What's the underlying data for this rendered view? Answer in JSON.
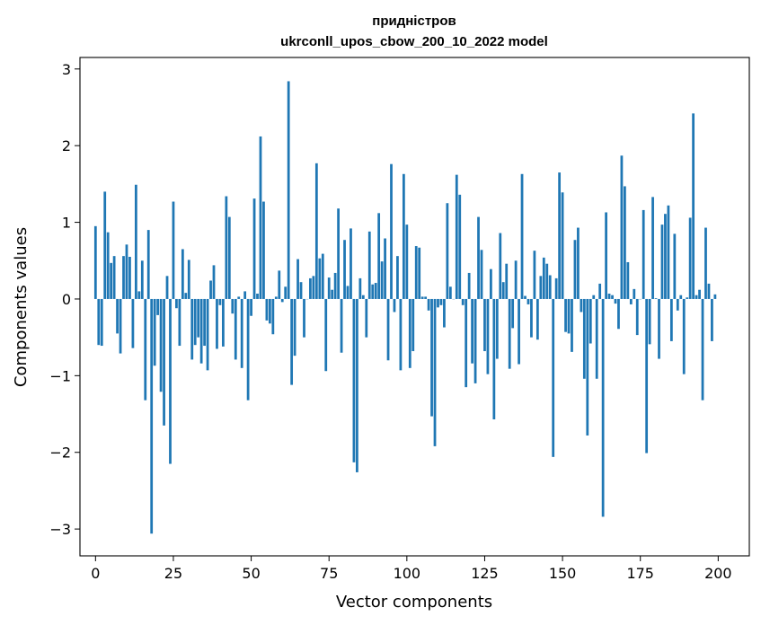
{
  "chart_data": {
    "type": "bar",
    "title": "придністров",
    "subtitle": "ukrconll_upos_cbow_200_10_2022 model",
    "xlabel": "Vector components",
    "ylabel": "Components values",
    "xlim": [
      -5,
      210
    ],
    "ylim": [
      -3.35,
      3.15
    ],
    "xticks": [
      0,
      25,
      50,
      75,
      100,
      125,
      150,
      175,
      200
    ],
    "xtick_labels": [
      "0",
      "25",
      "50",
      "75",
      "100",
      "125",
      "150",
      "175",
      "200"
    ],
    "yticks": [
      -3,
      -2,
      -1,
      0,
      1,
      2,
      3
    ],
    "ytick_labels": [
      "−3",
      "−2",
      "−1",
      "0",
      "1",
      "2",
      "3"
    ],
    "bar_color": "#1f77b4",
    "values": [
      0.95,
      -0.6,
      -0.61,
      1.4,
      0.87,
      0.47,
      0.56,
      -0.45,
      -0.71,
      0.56,
      0.71,
      0.55,
      -0.64,
      1.49,
      0.1,
      0.5,
      -1.32,
      0.9,
      -3.06,
      -0.87,
      -0.21,
      -1.21,
      -1.65,
      0.3,
      -2.15,
      1.27,
      -0.12,
      -0.61,
      0.65,
      0.08,
      0.51,
      -0.79,
      -0.6,
      -0.5,
      -0.84,
      -0.61,
      -0.93,
      0.24,
      0.44,
      -0.65,
      -0.08,
      -0.62,
      1.34,
      1.07,
      -0.19,
      -0.79,
      0.03,
      -0.9,
      0.1,
      -1.32,
      -0.22,
      1.31,
      0.07,
      2.12,
      1.27,
      -0.28,
      -0.32,
      -0.46,
      0.03,
      0.37,
      -0.04,
      0.16,
      2.84,
      -1.12,
      -0.74,
      0.52,
      0.22,
      -0.5,
      0.0,
      0.27,
      0.3,
      1.77,
      0.53,
      0.59,
      -0.94,
      0.28,
      0.12,
      0.34,
      1.18,
      -0.7,
      0.77,
      0.17,
      0.92,
      -2.13,
      -2.26,
      0.27,
      0.05,
      -0.5,
      0.88,
      0.19,
      0.21,
      1.12,
      0.49,
      0.79,
      -0.8,
      1.76,
      -0.17,
      0.56,
      -0.93,
      1.63,
      0.97,
      -0.9,
      -0.68,
      0.69,
      0.67,
      0.03,
      0.03,
      -0.15,
      -1.53,
      -1.92,
      -0.11,
      -0.08,
      -0.37,
      1.25,
      0.16,
      0.0,
      1.62,
      1.36,
      -0.08,
      -1.15,
      0.34,
      -0.84,
      -1.1,
      1.07,
      0.64,
      -0.68,
      -0.98,
      0.39,
      -1.57,
      -0.78,
      0.86,
      0.22,
      0.46,
      -0.91,
      -0.38,
      0.5,
      -0.85,
      1.63,
      0.04,
      -0.07,
      -0.5,
      0.63,
      -0.53,
      0.3,
      0.54,
      0.46,
      0.31,
      -2.06,
      0.27,
      1.65,
      1.39,
      -0.43,
      -0.45,
      -0.69,
      0.77,
      0.93,
      -0.17,
      -1.04,
      -1.78,
      -0.58,
      0.05,
      -1.04,
      0.2,
      -2.84,
      1.13,
      0.07,
      0.05,
      -0.06,
      -0.39,
      1.87,
      1.47,
      0.48,
      -0.07,
      0.13,
      -0.47,
      0.0,
      1.16,
      -2.01,
      -0.59,
      1.33,
      0.01,
      -0.78,
      0.97,
      1.11,
      1.22,
      -0.55,
      0.85,
      -0.15,
      0.05,
      -0.98,
      0.02,
      1.06,
      2.42,
      0.05,
      0.12,
      -1.32,
      0.93,
      0.2,
      -0.55,
      0.06
    ]
  }
}
